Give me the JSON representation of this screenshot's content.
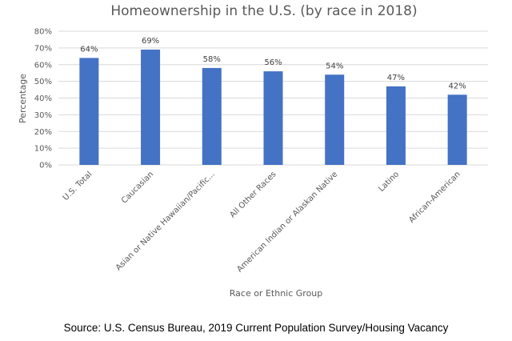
{
  "chart_data": {
    "type": "bar",
    "title": "Homeownership in the U.S. (by race in 2018)",
    "xlabel": "Race or Ethnic Group",
    "ylabel": "Percentage",
    "categories": [
      "U.S. Total",
      "Caucasian",
      "Asian or Native Hawaiian/Pacific...",
      "All Other Races",
      "American Indian or Alaskan Native",
      "Latino",
      "African-American"
    ],
    "values": [
      64,
      69,
      58,
      56,
      54,
      47,
      42
    ],
    "data_labels": [
      "64%",
      "69%",
      "58%",
      "56%",
      "54%",
      "47%",
      "42%"
    ],
    "ylim": [
      0,
      80
    ],
    "yticks": [
      0,
      10,
      20,
      30,
      40,
      50,
      60,
      70,
      80
    ],
    "ytick_labels": [
      "0%",
      "10%",
      "20%",
      "30%",
      "40%",
      "50%",
      "60%",
      "70%",
      "80%"
    ],
    "grid": true,
    "bar_color": "#4472C4",
    "gridline_color": "#D9D9D9"
  },
  "source": "Source: U.S. Census Bureau, 2019 Current Population Survey/Housing Vacancy"
}
